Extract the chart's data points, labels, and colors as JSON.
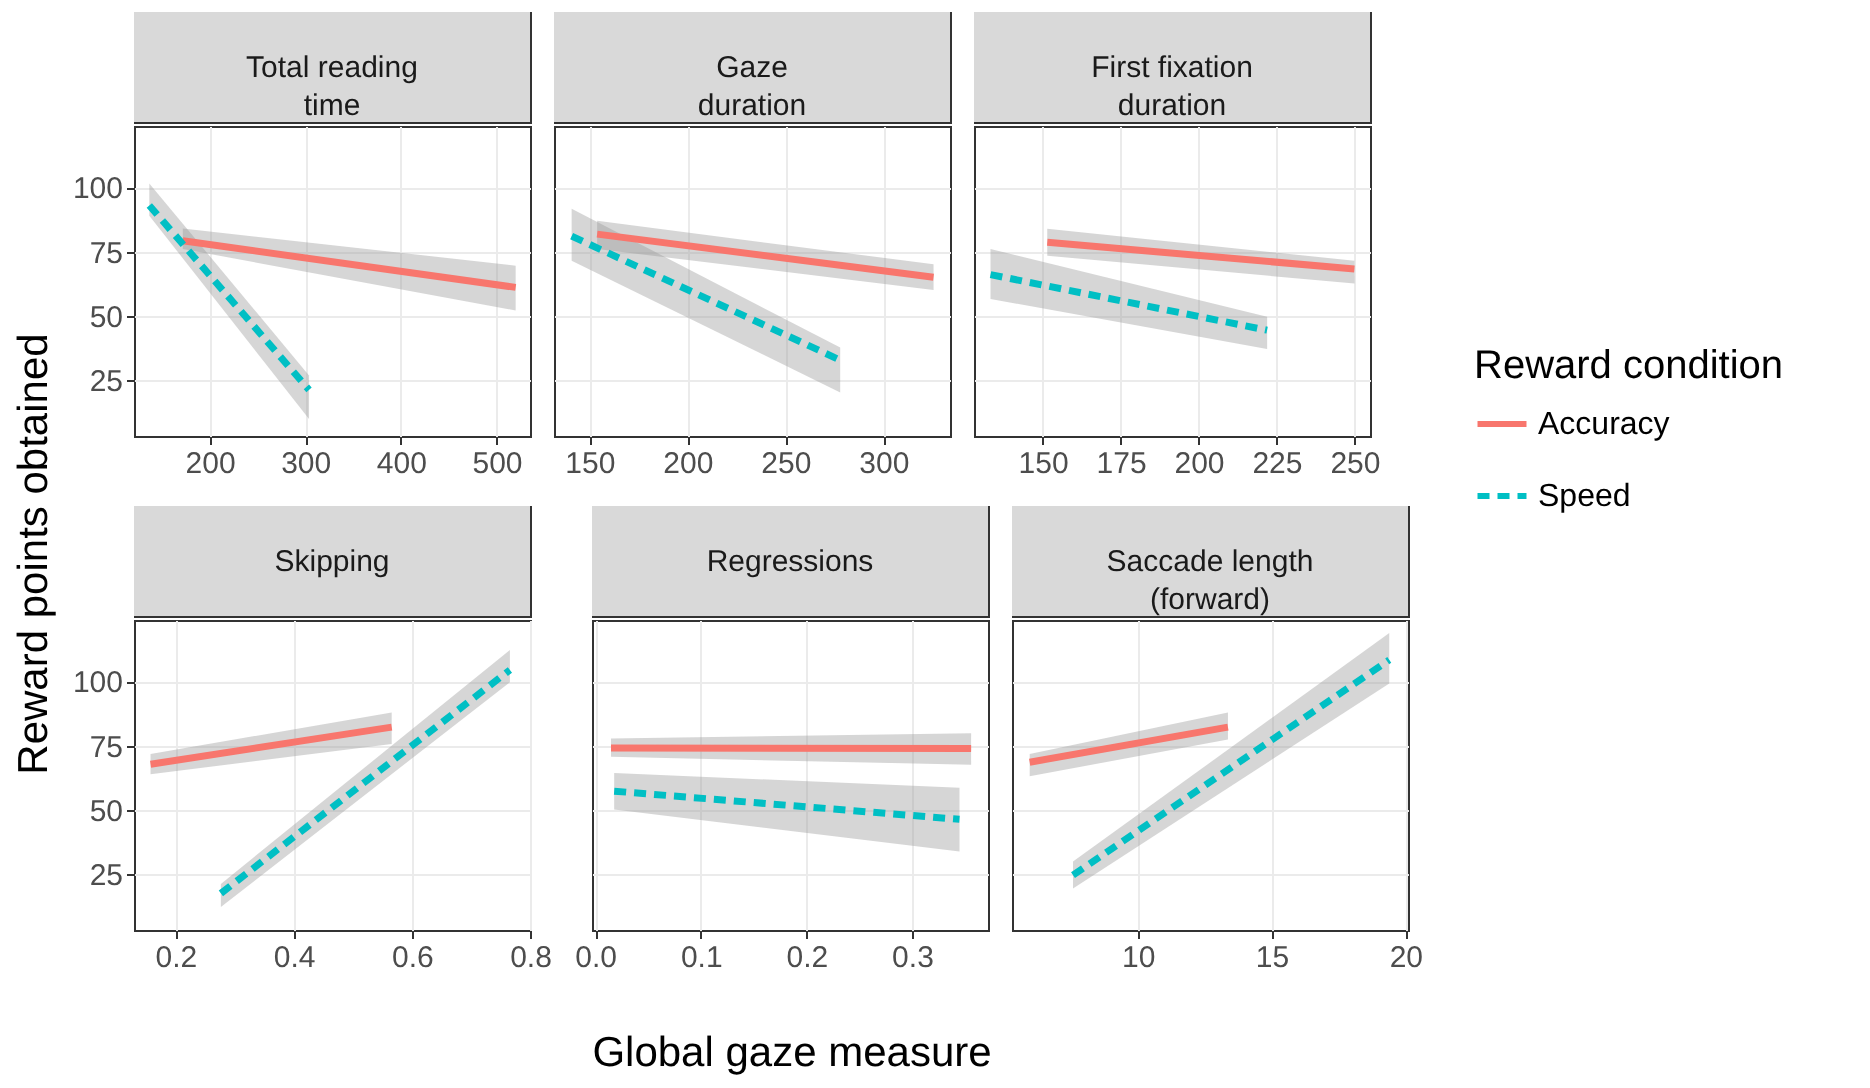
{
  "chart_data": [
    {
      "type": "line",
      "title": "Total reading\ntime",
      "ylabel": "Reward points obtained",
      "legend": "right",
      "legend_title": "Reward condition",
      "xlim": [
        121,
        535
      ],
      "xticks": [
        200,
        300,
        400,
        500
      ],
      "ylim": [
        3,
        124
      ],
      "yticks": [
        25,
        50,
        75,
        100
      ],
      "grid": true,
      "series": [
        {
          "name": "Accuracy",
          "color": "#f8766d",
          "line_style": "solid",
          "x": [
            172,
            520
          ],
          "values": [
            79.2,
            61
          ],
          "lower": [
            76,
            52
          ],
          "upper": [
            84,
            69.5
          ]
        },
        {
          "name": "Speed",
          "color": "#00bfc4",
          "line_style": "dashed",
          "x": [
            137,
            304
          ],
          "values": [
            93,
            21
          ],
          "lower": [
            89,
            9.6
          ],
          "upper": [
            101.6,
            26.6
          ]
        }
      ]
    },
    {
      "type": "line",
      "title": "Gaze\nduration",
      "xlim": [
        132,
        334
      ],
      "xticks": [
        150,
        200,
        250,
        300
      ],
      "ylim": [
        3,
        124
      ],
      "yticks": [
        25,
        50,
        75,
        100
      ],
      "grid": true,
      "tick_labels": "x",
      "series": [
        {
          "color": "#f8766d",
          "line_style": "solid",
          "x": [
            154,
            325.6
          ],
          "values": [
            81.8,
            65
          ],
          "lower": [
            76,
            60
          ],
          "upper": [
            87,
            70
          ]
        },
        {
          "color": "#00bfc4",
          "line_style": "dashed",
          "x": [
            141,
            278
          ],
          "values": [
            81,
            32.6
          ],
          "lower": [
            71.4,
            20
          ],
          "upper": [
            91.7,
            37.5
          ]
        }
      ]
    },
    {
      "type": "line",
      "title": "First fixation\nduration",
      "xlim": [
        128,
        255
      ],
      "xticks": [
        150,
        175,
        200,
        225,
        250
      ],
      "ylim": [
        3,
        124
      ],
      "yticks": [
        25,
        50,
        75,
        100
      ],
      "grid": true,
      "tick_labels": "x",
      "series": [
        {
          "color": "#f8766d",
          "line_style": "solid",
          "x": [
            151.5,
            250
          ],
          "values": [
            78.6,
            68.2
          ],
          "lower": [
            73.4,
            62.5
          ],
          "upper": [
            83.9,
            71.4
          ]
        },
        {
          "color": "#00bfc4",
          "line_style": "dashed",
          "x": [
            133.3,
            222
          ],
          "values": [
            66,
            44.3
          ],
          "lower": [
            56.5,
            37
          ],
          "upper": [
            76,
            49.5
          ]
        }
      ]
    },
    {
      "type": "line",
      "title": "Skipping",
      "xlim": [
        0.13,
        0.8
      ],
      "xticks": [
        0.2,
        0.4,
        0.6,
        0.8
      ],
      "ylim": [
        3,
        124
      ],
      "yticks": [
        25,
        50,
        75,
        100
      ],
      "grid": true,
      "series": [
        {
          "color": "#f8766d",
          "line_style": "solid",
          "x": [
            0.158,
            0.566
          ],
          "values": [
            67.7,
            82.2
          ],
          "lower": [
            63.8,
            75.6
          ],
          "upper": [
            71.7,
            87.9
          ]
        },
        {
          "color": "#00bfc4",
          "line_style": "dashed",
          "x": [
            0.277,
            0.766
          ],
          "values": [
            17.3,
            104.5
          ],
          "lower": [
            12,
            99.7
          ],
          "upper": [
            21,
            112.3
          ]
        }
      ]
    },
    {
      "type": "line",
      "title": "Regressions",
      "xlabel": "Global gaze measure",
      "xlim": [
        -0.003,
        0.372
      ],
      "xticks": [
        {
          "value": 0,
          "label": "0.0"
        },
        0.1,
        0.2,
        0.3
      ],
      "ylim": [
        3,
        124
      ],
      "yticks": [
        25,
        50,
        75,
        100
      ],
      "grid": true,
      "tick_labels": "x",
      "series": [
        {
          "color": "#f8766d",
          "line_style": "solid",
          "x": [
            0.015,
            0.356
          ],
          "values": [
            74,
            73.8
          ],
          "lower": [
            70.6,
            67.5
          ],
          "upper": [
            77.7,
            79.8
          ]
        },
        {
          "color": "#00bfc4",
          "line_style": "dashed",
          "x": [
            0.018,
            0.345
          ],
          "values": [
            57.2,
            46.2
          ],
          "lower": [
            50,
            33.6
          ],
          "upper": [
            64.3,
            58.5
          ]
        }
      ]
    },
    {
      "type": "line",
      "title": "Saccade length\n(forward)",
      "xlim": [
        5.3,
        20.1
      ],
      "xticks": [
        10,
        15,
        20
      ],
      "ylim": [
        3,
        124
      ],
      "yticks": [
        25,
        50,
        75,
        100
      ],
      "grid": true,
      "tick_labels": "x",
      "series": [
        {
          "color": "#f8766d",
          "line_style": "solid",
          "x": [
            5.96,
            13.37
          ],
          "values": [
            68.5,
            82.2
          ],
          "lower": [
            63,
            77.4
          ],
          "upper": [
            71.7,
            87.9
          ]
        },
        {
          "color": "#00bfc4",
          "line_style": "dashed",
          "x": [
            7.58,
            19.4
          ],
          "values": [
            24.4,
            108.4
          ],
          "lower": [
            19.2,
            99.2
          ],
          "upper": [
            29.7,
            118.9
          ]
        }
      ]
    }
  ]
}
